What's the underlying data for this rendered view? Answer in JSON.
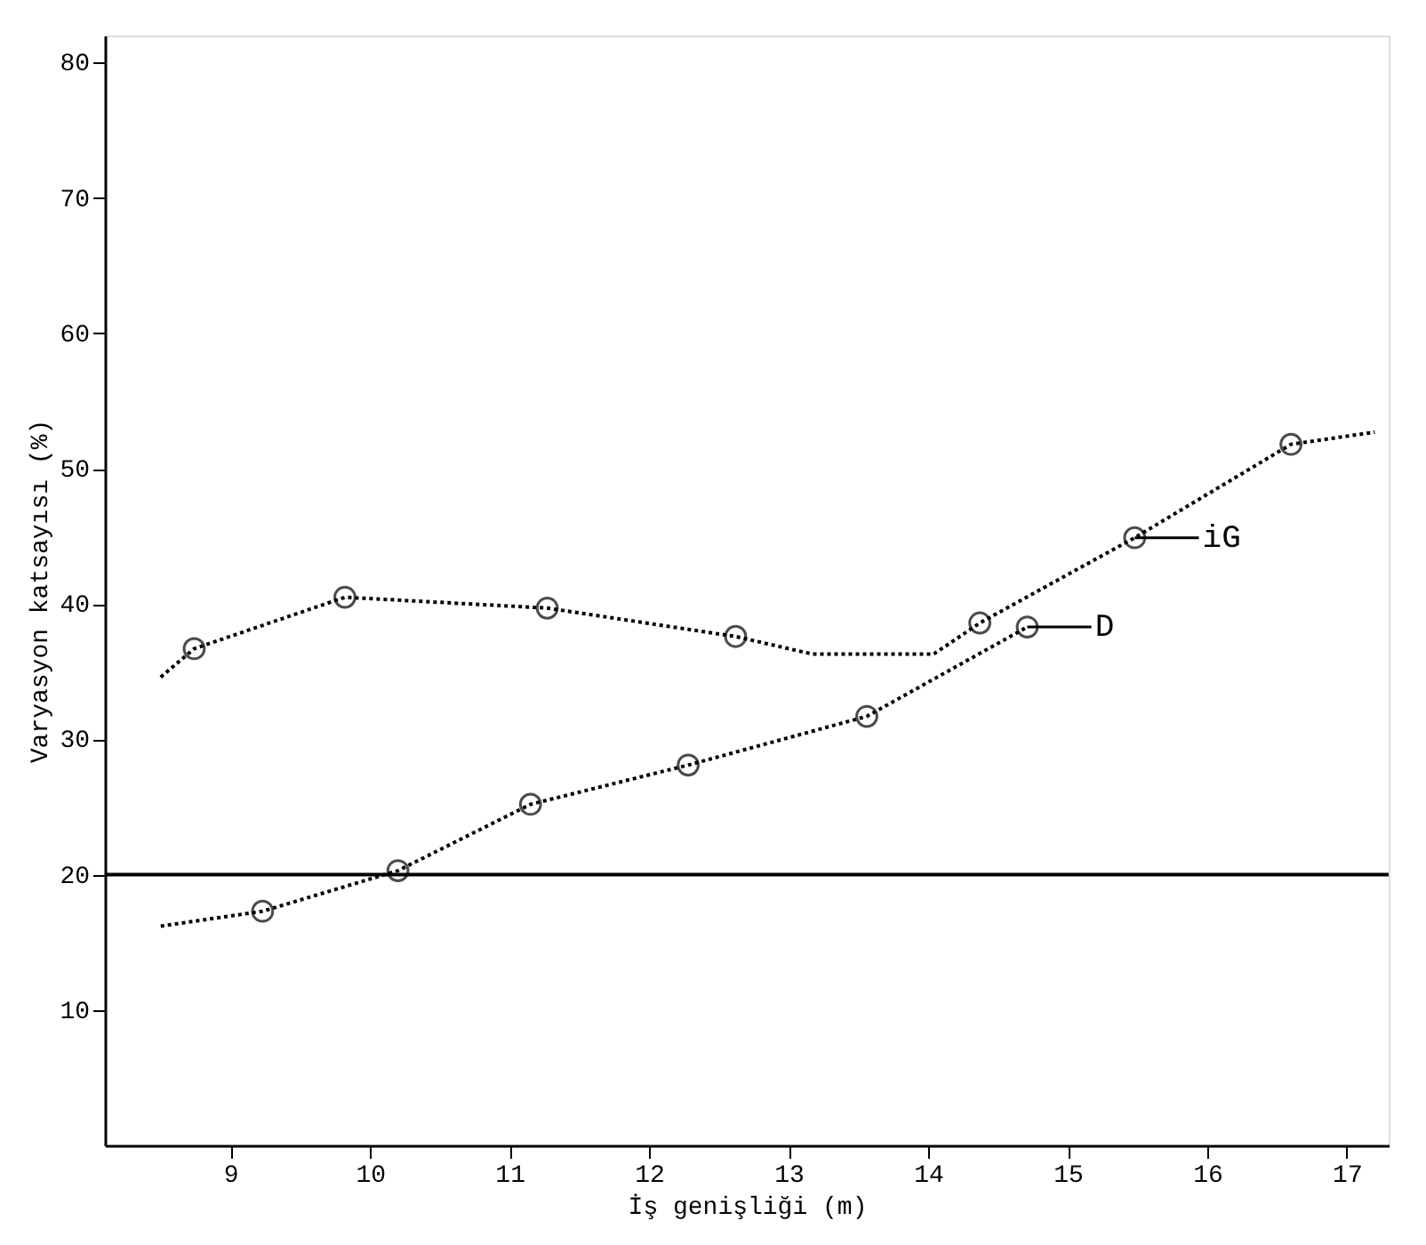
{
  "chart_data": {
    "type": "line",
    "xlabel": "İş genişliği (m)",
    "ylabel": "Varyasyon katsayısı (%)",
    "xlim": [
      8.1,
      17.3
    ],
    "xticks": [
      9,
      10,
      11,
      12,
      13,
      14,
      15,
      16,
      17
    ],
    "ylim": [
      0,
      82
    ],
    "yticks": [
      10,
      20,
      30,
      40,
      50,
      60,
      70,
      80
    ],
    "grid": false,
    "series": [
      {
        "color": "#000000",
        "marker": "none",
        "line_style": "dotted",
        "x": [
          8.5,
          8.74,
          9.82,
          11.27,
          12.62,
          13.17,
          14.04,
          14.37,
          15.48,
          16.6,
          17.2
        ],
        "values": [
          34.6,
          36.7,
          40.5,
          39.7,
          37.6,
          36.3,
          36.3,
          38.6,
          44.9,
          51.8,
          52.7
        ]
      },
      {
        "type": "scatter",
        "color": "#000000",
        "marker": "circle",
        "x": [
          8.74,
          9.82,
          11.27,
          12.62,
          14.37,
          15.48,
          16.6
        ],
        "values": [
          36.7,
          40.5,
          39.7,
          37.6,
          38.6,
          44.9,
          51.8
        ]
      },
      {
        "color": "#000000",
        "marker": "none",
        "line_style": "dotted",
        "x": [
          8.5,
          9.23,
          10.2,
          11.15,
          12.28,
          13.56,
          14.71
        ],
        "values": [
          16.2,
          17.3,
          20.3,
          25.2,
          28.1,
          31.7,
          38.3
        ]
      },
      {
        "type": "scatter",
        "color": "#000000",
        "marker": "circle",
        "x": [
          9.23,
          10.2,
          11.15,
          12.28,
          13.56,
          14.71
        ],
        "values": [
          17.3,
          20.3,
          25.2,
          28.1,
          31.7,
          38.3
        ]
      }
    ],
    "ref_lines": [
      {
        "axis": "y",
        "value": 20,
        "color": "#000000",
        "line_style": "solid"
      }
    ],
    "annotations": [
      {
        "text": "iG",
        "x": 15.48,
        "y": 44.9
      },
      {
        "text": "D",
        "x": 14.71,
        "y": 38.3
      }
    ]
  }
}
